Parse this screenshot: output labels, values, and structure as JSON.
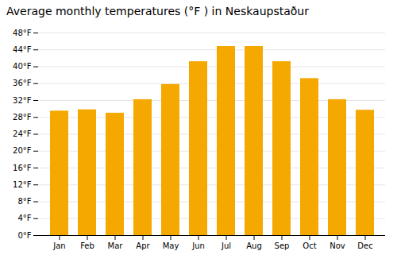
{
  "chart_data": {
    "type": "bar",
    "title": "Average monthly temperatures (°F ) in Neskaupstaður",
    "categories": [
      "Jan",
      "Feb",
      "Mar",
      "Apr",
      "May",
      "Jun",
      "Jul",
      "Aug",
      "Sep",
      "Oct",
      "Nov",
      "Dec"
    ],
    "values": [
      29.5,
      29.8,
      29.0,
      32.2,
      35.8,
      41.2,
      44.8,
      44.8,
      41.2,
      37.2,
      32.2,
      29.7
    ],
    "color": "#F5A800",
    "ylim": [
      0,
      48
    ],
    "yticks": [
      {
        "value": 0,
        "label": "0°F"
      },
      {
        "value": 4,
        "label": "4°F"
      },
      {
        "value": 8,
        "label": "8°F"
      },
      {
        "value": 12,
        "label": "12°F"
      },
      {
        "value": 16,
        "label": "16°F"
      },
      {
        "value": 20,
        "label": "20°F"
      },
      {
        "value": 24,
        "label": "24°F"
      },
      {
        "value": 28,
        "label": "28°F"
      },
      {
        "value": 32,
        "label": "32°F"
      },
      {
        "value": 36,
        "label": "36°F"
      },
      {
        "value": 40,
        "label": "40°F"
      },
      {
        "value": 44,
        "label": "44°F"
      },
      {
        "value": 48,
        "label": "48°F"
      }
    ],
    "grid": true
  }
}
